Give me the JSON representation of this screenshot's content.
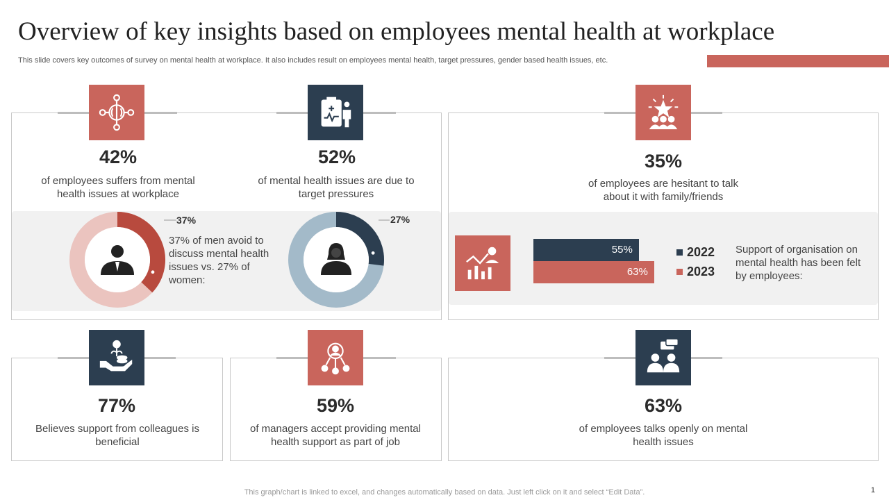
{
  "header": {
    "title": "Overview of key insights based on employees mental health at workplace",
    "subtitle": "This slide covers key outcomes of survey on mental health at workplace. It also includes result on employees mental health, target pressures, gender based health issues, etc."
  },
  "colors": {
    "red": "#c9655c",
    "navy": "#2c3e50",
    "light_red": "#ebc4bf",
    "steel": "#a3bac9"
  },
  "insights": {
    "mental_issues": {
      "icon": "brain-icon",
      "value": "42%",
      "text": "of employees suffers from mental health issues at workplace"
    },
    "target_pressure": {
      "icon": "clipboard-doctor-icon",
      "value": "52%",
      "text": "of mental health issues are due to target pressures"
    },
    "hesitant": {
      "icon": "team-star-icon",
      "value": "35%",
      "text": "of employees are hesitant to talk about it with family/friends"
    },
    "colleagues": {
      "icon": "hand-coins-icon",
      "value": "77%",
      "text": "Believes support from colleagues is beneficial"
    },
    "managers": {
      "icon": "manager-network-icon",
      "value": "59%",
      "text": "of managers accept providing mental health support as part of job"
    },
    "talk_openly": {
      "icon": "conversation-icon",
      "value": "63%",
      "text": "of employees talks openly on mental health issues"
    }
  },
  "gender": {
    "men": {
      "percent": 37,
      "label": "37%",
      "icon": "man-icon"
    },
    "women": {
      "percent": 27,
      "label": "27%",
      "icon": "woman-icon"
    },
    "text": "37% of men avoid to discuss mental health issues vs. 27% of women:"
  },
  "chart_data": {
    "type": "bar",
    "orientation": "horizontal",
    "title": "Support of organisation on mental health has been felt by employees:",
    "series": [
      {
        "name": "2022",
        "value": 55,
        "label": "55%"
      },
      {
        "name": "2023",
        "value": 63,
        "label": "63%"
      }
    ],
    "xlim": [
      0,
      100
    ],
    "icon": "growth-chart-icon"
  },
  "footer": {
    "note": "This graph/chart is linked to excel, and changes automatically based on data. Just left click on it and select “Edit Data”.",
    "page": "1"
  }
}
